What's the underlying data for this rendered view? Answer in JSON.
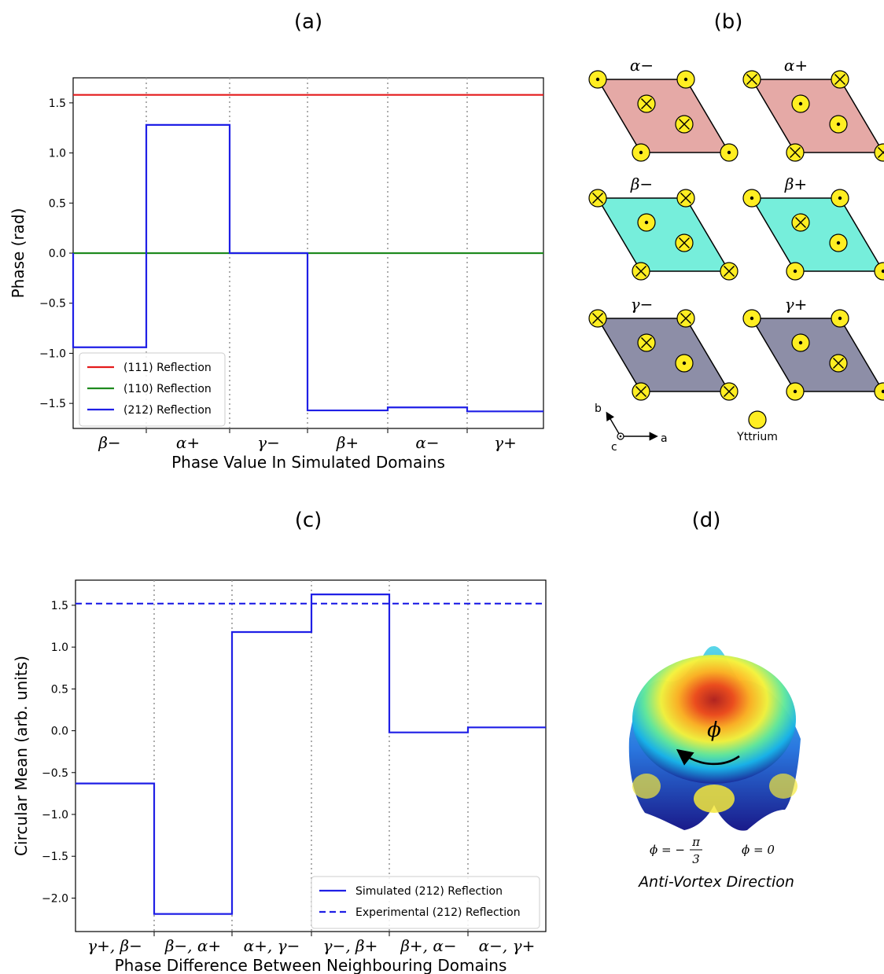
{
  "panels": {
    "a": "(a)",
    "b": "(b)",
    "c": "(c)",
    "d": "(d)"
  },
  "chart_data": [
    {
      "type": "line",
      "panel": "(a)",
      "xlabel": "Phase Value In Simulated Domains",
      "ylabel": "Phase (rad)",
      "ylim": [
        -1.75,
        1.75
      ],
      "yticks": [
        "1.5",
        "1.0",
        "0.5",
        "0.0",
        "−0.5",
        "−1.0",
        "−1.5"
      ],
      "ytick_values": [
        1.5,
        1.0,
        0.5,
        0.0,
        -0.5,
        -1.0,
        -1.5
      ],
      "categories": [
        "β−",
        "α+",
        "γ−",
        "β+",
        "α−",
        "γ+"
      ],
      "legend_position": "lower-left",
      "grid": false,
      "domain_separators": true,
      "series": [
        {
          "name": "(111) Reflection",
          "color": "#e41a1c",
          "values": [
            1.58,
            1.58,
            1.58,
            1.58,
            1.58,
            1.58
          ]
        },
        {
          "name": "(110) Reflection",
          "color": "#1f8a1f",
          "values": [
            0.0,
            0.0,
            0.0,
            0.0,
            0.0,
            0.0
          ]
        },
        {
          "name": "(212) Reflection",
          "color": "#1f1fe6",
          "values": [
            -0.94,
            1.28,
            0.0,
            -1.57,
            -1.54,
            -1.58
          ]
        }
      ]
    },
    {
      "type": "line",
      "panel": "(c)",
      "xlabel": "Phase Difference Between Neighbouring Domains",
      "ylabel": "Circular Mean (arb. units)",
      "ylim": [
        -2.4,
        1.8
      ],
      "yticks": [
        "1.5",
        "1.0",
        "0.5",
        "0.0",
        "−0.5",
        "−1.0",
        "−1.5",
        "−2.0"
      ],
      "ytick_values": [
        1.5,
        1.0,
        0.5,
        0.0,
        -0.5,
        -1.0,
        -1.5,
        -2.0
      ],
      "categories": [
        "γ+, β−",
        "β−, α+",
        "α+, γ−",
        "γ−, β+",
        "β+, α−",
        "α−, γ+"
      ],
      "legend_position": "lower-right",
      "grid": false,
      "domain_separators": true,
      "series": [
        {
          "name": "Simulated (212) Reflection",
          "color": "#1f1fe6",
          "style": "solid",
          "values": [
            -0.63,
            -2.19,
            1.18,
            1.63,
            -0.02,
            0.04
          ]
        },
        {
          "name": "Experimental (212) Reflection",
          "color": "#1f1fe6",
          "style": "dashed",
          "values": [
            1.52,
            1.52,
            1.52,
            1.52,
            1.52,
            1.52
          ]
        }
      ]
    }
  ],
  "domains": {
    "labels": [
      "α−",
      "α+",
      "β−",
      "β+",
      "γ−",
      "γ+"
    ],
    "colors": {
      "alpha": "#e5a9a6",
      "beta": "#76eedb",
      "gamma": "#8d8ea7"
    },
    "atom_color": "#ffee22",
    "legend_atom": "Yttrium",
    "axes": {
      "a": "a",
      "b": "b",
      "c": "c"
    }
  },
  "vortex": {
    "phi": "ϕ",
    "left_label": "ϕ = −",
    "pi": "π",
    "three": "3",
    "right_label": "ϕ = 0",
    "caption": "Anti-Vortex Direction"
  }
}
